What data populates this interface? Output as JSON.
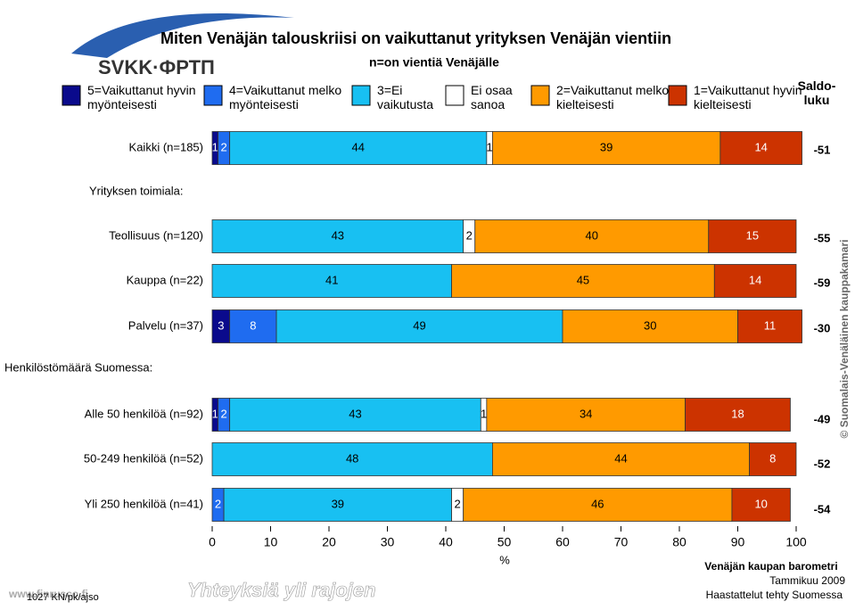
{
  "chart_data": {
    "type": "stacked-bar-horizontal",
    "title": "Miten Venäjän talouskriisi on vaikuttanut yrityksen Venäjän vientiin",
    "subtitle": "n=on vientiä Venäjälle",
    "xlabel": "%",
    "saldo_title": "Saldo-luku",
    "categories": [
      "Kaikki (n=185)",
      "Yrityksen toimiala:",
      "Teollisuus (n=120)",
      "Kauppa (n=22)",
      "Palvelu (n=37)",
      "Henkilöstömäärä Suomessa:",
      "Alle 50 henkilöä (n=92)",
      "50-249 henkilöä (n=52)",
      "Yli 250 henkilöä (n=41)"
    ],
    "series": [
      {
        "name": "5=Vaikuttanut hyvin myönteisesti",
        "color": "#0a0a8c",
        "values": [
          1,
          null,
          null,
          null,
          3,
          null,
          1,
          null,
          null
        ]
      },
      {
        "name": "4=Vaikuttanut melko myönteisesti",
        "color": "#1f6cf0",
        "values": [
          2,
          null,
          null,
          null,
          8,
          null,
          2,
          null,
          2
        ]
      },
      {
        "name": "3=Ei vaikutusta",
        "color": "#18c0f2",
        "values": [
          44,
          null,
          43,
          41,
          49,
          null,
          43,
          48,
          39
        ]
      },
      {
        "name": "Ei osaa sanoa",
        "color": "#ffffff",
        "values": [
          1,
          null,
          2,
          null,
          null,
          null,
          1,
          null,
          2
        ]
      },
      {
        "name": "2=Vaikuttanut melko kielteisesti",
        "color": "#ff9a00",
        "values": [
          39,
          null,
          40,
          45,
          30,
          null,
          34,
          44,
          46
        ]
      },
      {
        "name": "1=Vaikuttanut hyvin kielteisesti",
        "color": "#cc3300",
        "values": [
          14,
          null,
          15,
          14,
          11,
          null,
          18,
          8,
          10
        ]
      }
    ],
    "saldo": [
      -51,
      null,
      -55,
      -59,
      -30,
      null,
      -49,
      -52,
      -54
    ],
    "xlim": [
      0,
      100
    ],
    "xticks": [
      0,
      10,
      20,
      30,
      40,
      50,
      60,
      70,
      80,
      90,
      100
    ],
    "logo": "SVKK·ФРТП",
    "slogan": "Yhteyksiä yli rajojen",
    "website": "www.finrusco.fi",
    "code": "1027 KN/pk/ajso",
    "copyright": "© Suomalais-Venäläinen kauppakamari",
    "footer": [
      "Venäjän kaupan barometri",
      "Tammikuu 2009",
      "Haastattelut tehty Suomessa"
    ]
  }
}
